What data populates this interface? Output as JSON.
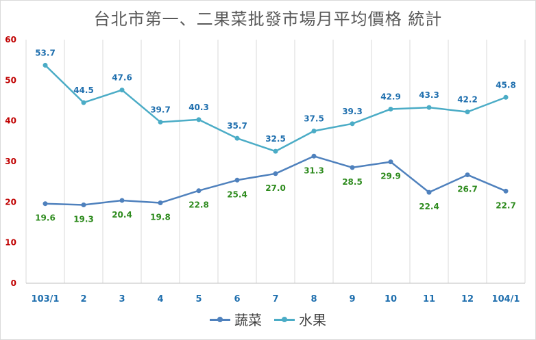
{
  "chart_data": {
    "type": "line",
    "title": "台北市第一、二果菜批發市場月平均價格 統計",
    "categories": [
      "103/1",
      "2",
      "3",
      "4",
      "5",
      "6",
      "7",
      "8",
      "9",
      "10",
      "11",
      "12",
      "104/1"
    ],
    "ylim": [
      0,
      60
    ],
    "yticks": [
      0,
      10,
      20,
      30,
      40,
      50,
      60
    ],
    "grid": "vertical",
    "legend": "bottom",
    "series": [
      {
        "name": "蔬菜",
        "color": "#4f81bd",
        "label_color": "#2e8b1e",
        "values": [
          19.6,
          19.3,
          20.4,
          19.8,
          22.8,
          25.4,
          27.0,
          31.3,
          28.5,
          29.9,
          22.4,
          26.7,
          22.7
        ],
        "labels": [
          "19.6",
          "19.3",
          "20.4",
          "19.8",
          "22.8",
          "25.4",
          "27.0",
          "31.3",
          "28.5",
          "29.9",
          "22.4",
          "26.7",
          "22.7"
        ],
        "label_position": "below"
      },
      {
        "name": "水果",
        "color": "#4bacc6",
        "label_color": "#1f6fae",
        "values": [
          53.7,
          44.5,
          47.6,
          39.7,
          40.3,
          35.7,
          32.5,
          37.5,
          39.3,
          42.9,
          43.3,
          42.2,
          45.8
        ],
        "labels": [
          "53.7",
          "44.5",
          "47.6",
          "39.7",
          "40.3",
          "35.7",
          "32.5",
          "37.5",
          "39.3",
          "42.9",
          "43.3",
          "42.2",
          "45.8"
        ],
        "label_position": "above"
      }
    ],
    "colors": {
      "ytick": "#c00000",
      "xtick": "#1f6fae",
      "grid": "#d9d9d9",
      "axis": "#bfbfbf"
    }
  }
}
